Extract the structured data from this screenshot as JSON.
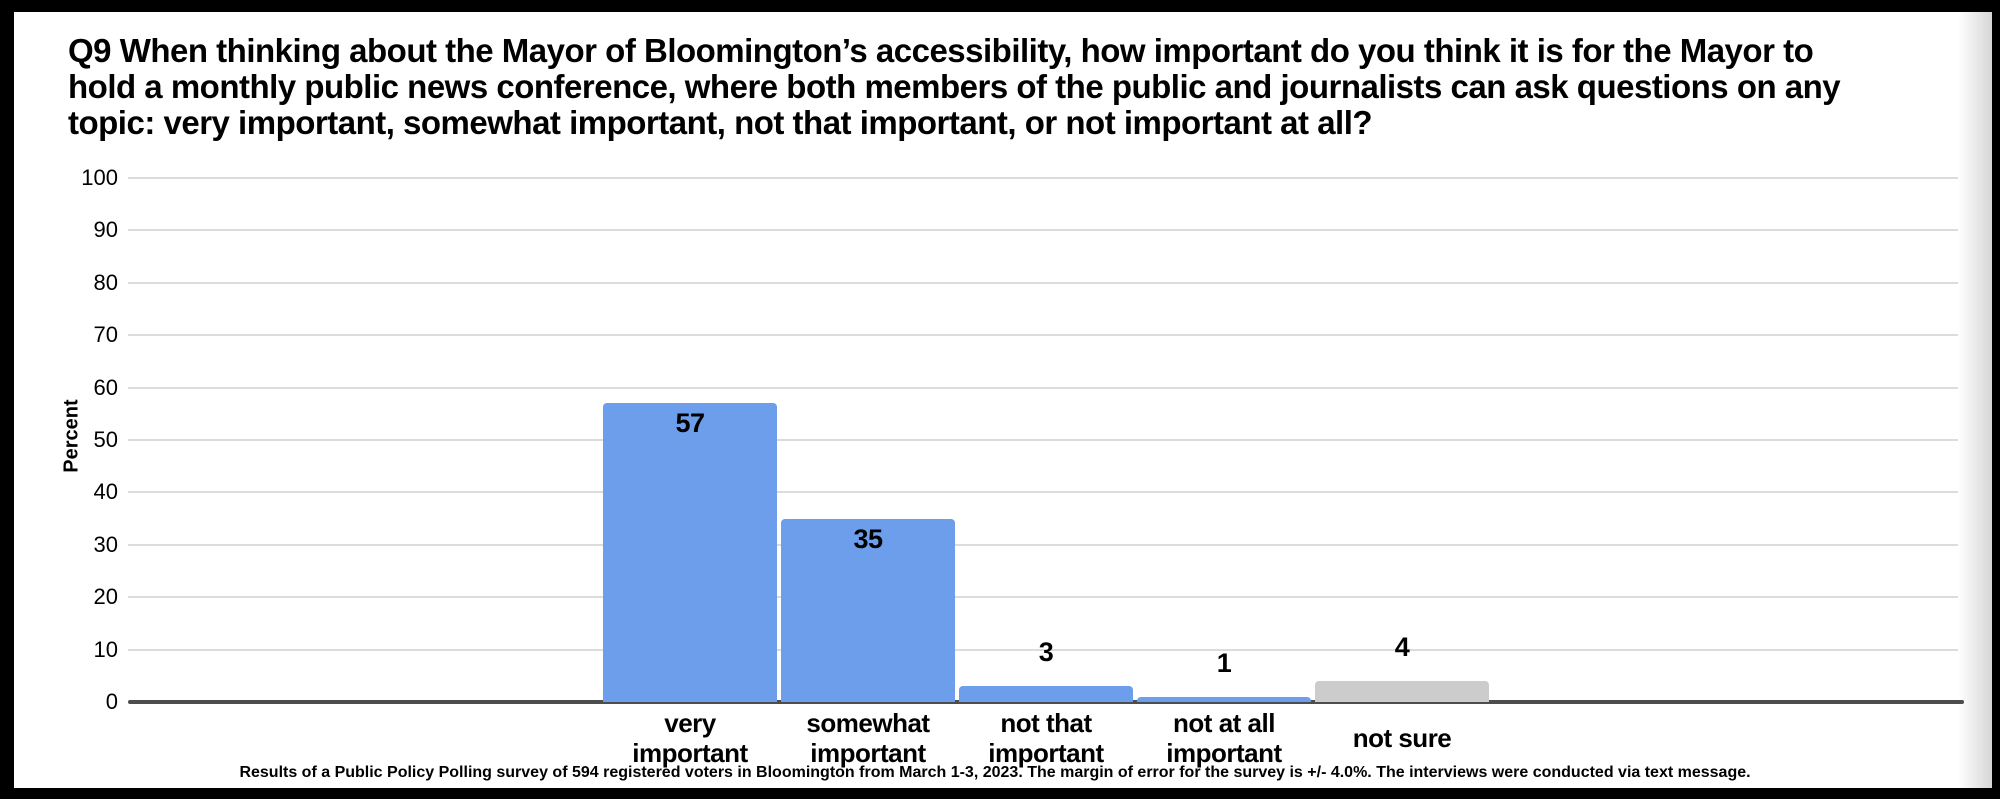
{
  "chart_data": {
    "type": "bar",
    "title": "Q9 When thinking about the Mayor of Bloomington’s accessibility, how important do you think it is for the Mayor to hold a monthly public news conference, where both members of the public and journalists can ask questions on any topic: very important, somewhat important, not that important, or not important at all?",
    "title_lines": [
      "Q9 When thinking about the Mayor of Bloomington’s accessibility, how important do you think it is for the Mayor to",
      "hold a monthly public news conference, where both members of the public and journalists can ask questions on any",
      "topic: very important, somewhat important, not that important, or not important at all?"
    ],
    "xlabel": "",
    "ylabel": "Percent",
    "ylim": [
      0,
      100
    ],
    "yticks": [
      0,
      10,
      20,
      30,
      40,
      50,
      60,
      70,
      80,
      90,
      100
    ],
    "grid": true,
    "legend_position": "none",
    "categories": [
      "very important",
      "somewhat important",
      "not that important",
      "not at all important",
      "not sure"
    ],
    "category_label_lines": [
      [
        "very",
        "important"
      ],
      [
        "somewhat",
        "important"
      ],
      [
        "not that",
        "important"
      ],
      [
        "not at all",
        "important"
      ],
      [
        "not sure"
      ]
    ],
    "values": [
      57,
      35,
      3,
      1,
      4
    ],
    "bar_colors": [
      "#6d9eeb",
      "#6d9eeb",
      "#6d9eeb",
      "#6d9eeb",
      "#cccccc"
    ],
    "value_label_placement": [
      "inside-top",
      "inside-top",
      "above",
      "above",
      "above"
    ]
  },
  "footer": {
    "text": "Results of a Public Policy Polling survey of 594 registered voters in Bloomington from March 1-3, 2023. The margin of error for the survey is +/- 4.0%. The interviews were conducted via text message."
  },
  "colors": {
    "bar_primary": "#6d9eeb",
    "bar_not_sure": "#cccccc",
    "gridline": "#dcdcdc",
    "axis_line": "#4d4d4d",
    "text": "#000000",
    "background": "#ffffff",
    "frame_border": "#000000"
  }
}
